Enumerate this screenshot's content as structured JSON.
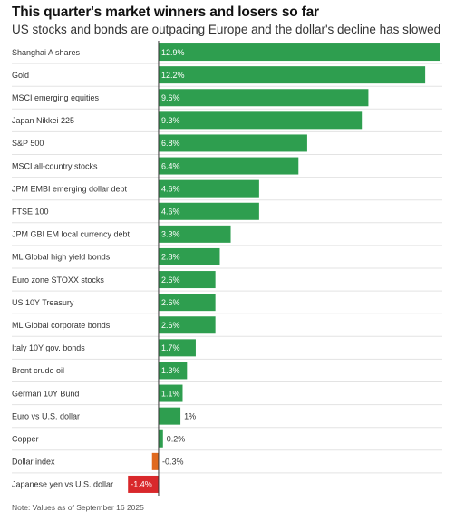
{
  "title": "This quarter's market winners and losers so far",
  "subtitle": "US stocks and bonds are outpacing Europe and the dollar's decline has slowed",
  "note": "Note: Values as of September 16 2025",
  "colors": {
    "positive": "#2e9e4f",
    "negative_small": "#e06a1f",
    "negative_large": "#d9282b",
    "grid": "#e3e3e3",
    "axis": "#333333"
  },
  "chart_data": {
    "type": "bar",
    "orientation": "horizontal",
    "title": "This quarter's market winners and losers so far",
    "subtitle": "US stocks and bonds are outpacing Europe and the dollar's decline has slowed",
    "categories": [
      "Shanghai A shares",
      "Gold",
      "MSCI emerging equities",
      "Japan Nikkei 225",
      "S&P 500",
      "MSCI all-country stocks",
      "JPM EMBI emerging dollar debt",
      "FTSE 100",
      "JPM GBI EM local currency debt",
      "ML Global high yield bonds",
      "Euro zone STOXX stocks",
      "US 10Y Treasury",
      "ML Global corporate bonds",
      "Italy 10Y gov. bonds",
      "Brent crude oil",
      "German 10Y Bund",
      "Euro vs U.S. dollar",
      "Copper",
      "Dollar index",
      "Japanese yen vs U.S. dollar"
    ],
    "values": [
      12.9,
      12.2,
      9.6,
      9.3,
      6.8,
      6.4,
      4.6,
      4.6,
      3.3,
      2.8,
      2.6,
      2.6,
      2.6,
      1.7,
      1.3,
      1.1,
      1.0,
      0.2,
      -0.3,
      -1.4
    ],
    "value_labels": [
      "12.9%",
      "12.2%",
      "9.6%",
      "9.3%",
      "6.8%",
      "6.4%",
      "4.6%",
      "4.6%",
      "3.3%",
      "2.8%",
      "2.6%",
      "2.6%",
      "2.6%",
      "1.7%",
      "1.3%",
      "1.1%",
      "1%",
      "0.2%",
      "-0.3%",
      "-1.4%"
    ],
    "xlim": [
      -1.45,
      12.9
    ],
    "grid": true,
    "legend": "none"
  }
}
